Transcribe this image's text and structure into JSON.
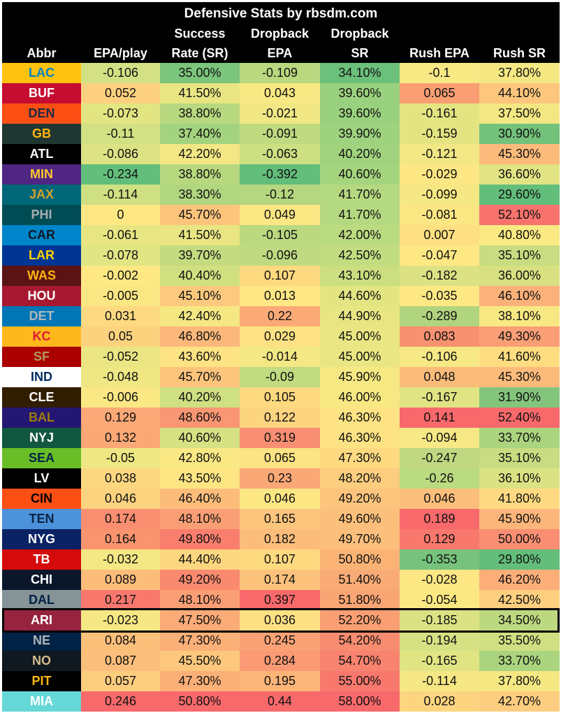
{
  "chart_data": {
    "type": "table",
    "title": "Defensive Stats by rbsdm.com",
    "columns": [
      {
        "key": "abbr",
        "lines": [
          "",
          "",
          "Abbr"
        ]
      },
      {
        "key": "epa",
        "lines": [
          "",
          "",
          "EPA/play"
        ]
      },
      {
        "key": "sr",
        "lines": [
          "",
          "Success",
          "Rate (SR)"
        ]
      },
      {
        "key": "db_epa",
        "lines": [
          "",
          "Dropback",
          "EPA"
        ]
      },
      {
        "key": "db_sr",
        "lines": [
          "",
          "Dropback",
          "SR"
        ]
      },
      {
        "key": "rush_epa",
        "lines": [
          "",
          "",
          "Rush EPA"
        ]
      },
      {
        "key": "rush_sr",
        "lines": [
          "",
          "",
          "Rush SR"
        ]
      }
    ],
    "highlighted_row": "ARI",
    "rows": [
      {
        "abbr": "LAC",
        "team_bg": "#FFC20E",
        "team_fg": "#0080C6",
        "values": [
          "-0.106",
          "35.00%",
          "-0.109",
          "34.10%",
          "-0.1",
          "37.80%"
        ],
        "colors": [
          "#d3e184",
          "#7cc57c",
          "#b9d87f",
          "#6bc07b",
          "#f9e985",
          "#f5e883"
        ]
      },
      {
        "abbr": "BUF",
        "team_bg": "#C60C30",
        "team_fg": "#ffffff",
        "values": [
          "0.052",
          "41.50%",
          "0.043",
          "39.60%",
          "0.065",
          "44.10%"
        ],
        "colors": [
          "#fdd17f",
          "#e9e582",
          "#f9e984",
          "#9ad17e",
          "#f99e72",
          "#fdc67d"
        ]
      },
      {
        "abbr": "DEN",
        "team_bg": "#FB4F14",
        "team_fg": "#1f2a44",
        "values": [
          "-0.073",
          "38.80%",
          "-0.021",
          "39.60%",
          "-0.161",
          "37.50%"
        ],
        "colors": [
          "#e3e583",
          "#b8d87f",
          "#f0e784",
          "#9ad17e",
          "#e4e483",
          "#f3e783"
        ]
      },
      {
        "abbr": "GB",
        "team_bg": "#203731",
        "team_fg": "#FFB612",
        "values": [
          "-0.11",
          "37.40%",
          "-0.091",
          "39.90%",
          "-0.159",
          "30.90%"
        ],
        "colors": [
          "#d1e183",
          "#a3d37e",
          "#bfda80",
          "#9ed27e",
          "#e4e483",
          "#73c27b"
        ]
      },
      {
        "abbr": "ATL",
        "team_bg": "#000000",
        "team_fg": "#ffffff",
        "values": [
          "-0.086",
          "42.20%",
          "-0.063",
          "40.20%",
          "-0.121",
          "45.30%"
        ],
        "colors": [
          "#dde384",
          "#f2e784",
          "#cddf81",
          "#a1d37e",
          "#f2e784",
          "#fcbb7b"
        ]
      },
      {
        "abbr": "MIN",
        "team_bg": "#4F2683",
        "team_fg": "#FFC62F",
        "values": [
          "-0.234",
          "38.80%",
          "-0.392",
          "40.60%",
          "-0.029",
          "36.60%"
        ],
        "colors": [
          "#63be7b",
          "#b8d87f",
          "#63be7b",
          "#a5d47e",
          "#fde784",
          "#e2e383"
        ]
      },
      {
        "abbr": "JAX",
        "team_bg": "#006778",
        "team_fg": "#D7A22A",
        "values": [
          "-0.114",
          "38.30%",
          "-0.12",
          "41.70%",
          "-0.099",
          "29.60%"
        ],
        "colors": [
          "#cfe083",
          "#b0d67f",
          "#b5d77f",
          "#b5d980",
          "#f5e884",
          "#63be7b"
        ]
      },
      {
        "abbr": "PHI",
        "team_bg": "#004C54",
        "team_fg": "#A5ACAF",
        "values": [
          "0",
          "45.70%",
          "0.049",
          "41.70%",
          "-0.081",
          "52.10%"
        ],
        "colors": [
          "#fee883",
          "#fdc47c",
          "#fbe784",
          "#b5d980",
          "#fae784",
          "#f8736d"
        ]
      },
      {
        "abbr": "CAR",
        "team_bg": "#0085CA",
        "team_fg": "#101820",
        "values": [
          "-0.061",
          "41.50%",
          "-0.105",
          "42.00%",
          "0.007",
          "40.80%"
        ],
        "colors": [
          "#e8e683",
          "#e9e582",
          "#bbd980",
          "#badb80",
          "#fedf82",
          "#fbe983"
        ]
      },
      {
        "abbr": "LAR",
        "team_bg": "#003594",
        "team_fg": "#FFD100",
        "values": [
          "-0.078",
          "39.70%",
          "-0.096",
          "42.50%",
          "-0.047",
          "35.10%"
        ],
        "colors": [
          "#e1e583",
          "#c5db80",
          "#bfda80",
          "#c2dd81",
          "#fde884",
          "#c9dc81"
        ]
      },
      {
        "abbr": "WAS",
        "team_bg": "#5A1414",
        "team_fg": "#FFB612",
        "values": [
          "-0.002",
          "40.40%",
          "0.107",
          "43.10%",
          "-0.182",
          "36.00%"
        ],
        "colors": [
          "#fde884",
          "#d0e081",
          "#fdd980",
          "#cbdf81",
          "#dce283",
          "#d8e082"
        ]
      },
      {
        "abbr": "HOU",
        "team_bg": "#A71930",
        "team_fg": "#ffffff",
        "values": [
          "-0.005",
          "45.10%",
          "0.013",
          "44.60%",
          "-0.035",
          "46.10%"
        ],
        "colors": [
          "#fae784",
          "#fdc97e",
          "#fee784",
          "#e3e583",
          "#fde884",
          "#fcb17a"
        ]
      },
      {
        "abbr": "DET",
        "team_bg": "#0076B6",
        "team_fg": "#B0B7BC",
        "values": [
          "0.031",
          "42.40%",
          "0.22",
          "44.90%",
          "-0.289",
          "38.10%"
        ],
        "colors": [
          "#fdda81",
          "#f5e883",
          "#fbaa77",
          "#e8e683",
          "#b1d47e",
          "#f8e883"
        ]
      },
      {
        "abbr": "KC",
        "team_bg": "#FFB81C",
        "team_fg": "#E31837",
        "values": [
          "0.05",
          "46.80%",
          "0.029",
          "45.00%",
          "0.083",
          "49.30%"
        ],
        "colors": [
          "#fdd27f",
          "#fcb87b",
          "#fee184",
          "#eae683",
          "#f8916f",
          "#fa9e75"
        ]
      },
      {
        "abbr": "SF",
        "team_bg": "#AA0000",
        "team_fg": "#B3995D",
        "values": [
          "-0.052",
          "43.60%",
          "-0.014",
          "45.00%",
          "-0.106",
          "41.60%"
        ],
        "colors": [
          "#ebe683",
          "#fde383",
          "#f3e884",
          "#eae683",
          "#f6e884",
          "#fedd81"
        ]
      },
      {
        "abbr": "IND",
        "team_bg": "#ffffff",
        "team_fg": "#002C5F",
        "values": [
          "-0.048",
          "45.70%",
          "-0.09",
          "45.90%",
          "0.048",
          "45.30%"
        ],
        "colors": [
          "#eee783",
          "#fdc47c",
          "#c1db80",
          "#f6e883",
          "#fbbc7a",
          "#fcbb7b"
        ]
      },
      {
        "abbr": "CLE",
        "team_bg": "#311D00",
        "team_fg": "#ffffff",
        "values": [
          "-0.006",
          "40.20%",
          "0.105",
          "46.00%",
          "-0.167",
          "31.90%"
        ],
        "colors": [
          "#fae884",
          "#cee081",
          "#fdd980",
          "#f8e883",
          "#e1e483",
          "#83c57c"
        ]
      },
      {
        "abbr": "BAL",
        "team_bg": "#241773",
        "team_fg": "#9E7C0C",
        "values": [
          "0.129",
          "48.60%",
          "0.122",
          "46.30%",
          "0.141",
          "52.40%"
        ],
        "colors": [
          "#fba977",
          "#f99673",
          "#fdd47f",
          "#fde384",
          "#f8696b",
          "#f8696b"
        ]
      },
      {
        "abbr": "NYJ",
        "team_bg": "#125740",
        "team_fg": "#ffffff",
        "values": [
          "0.132",
          "40.60%",
          "0.319",
          "46.30%",
          "-0.094",
          "33.70%"
        ],
        "colors": [
          "#fba876",
          "#d5e182",
          "#f98f72",
          "#fde384",
          "#f6e884",
          "#abd47e"
        ]
      },
      {
        "abbr": "SEA",
        "team_bg": "#69BE28",
        "team_fg": "#002244",
        "values": [
          "-0.05",
          "42.80%",
          "0.065",
          "47.30%",
          "-0.247",
          "35.10%"
        ],
        "colors": [
          "#eee783",
          "#f9e884",
          "#fce383",
          "#fed980",
          "#bfd881",
          "#c9dc81"
        ]
      },
      {
        "abbr": "LV",
        "team_bg": "#000000",
        "team_fg": "#ffffff",
        "values": [
          "0.038",
          "43.50%",
          "0.23",
          "48.20%",
          "-0.26",
          "36.10%"
        ],
        "colors": [
          "#fdd780",
          "#fde583",
          "#fba877",
          "#fdcd7f",
          "#badb80",
          "#dae283"
        ]
      },
      {
        "abbr": "CIN",
        "team_bg": "#FB4F14",
        "team_fg": "#000000",
        "values": [
          "0.046",
          "46.40%",
          "0.046",
          "49.20%",
          "0.046",
          "41.80%"
        ],
        "colors": [
          "#fdd37f",
          "#fcbd7b",
          "#fde784",
          "#fdc47d",
          "#fbbe7b",
          "#fed981"
        ]
      },
      {
        "abbr": "TEN",
        "team_bg": "#4B92DB",
        "team_fg": "#0C2340",
        "values": [
          "0.174",
          "48.10%",
          "0.165",
          "49.60%",
          "0.189",
          "45.90%"
        ],
        "colors": [
          "#f98e71",
          "#fa9f75",
          "#fcc57d",
          "#fcc07c",
          "#f8696b",
          "#fcb57a"
        ]
      },
      {
        "abbr": "NYG",
        "team_bg": "#0B2265",
        "team_fg": "#ffffff",
        "values": [
          "0.164",
          "49.80%",
          "0.182",
          "49.70%",
          "0.129",
          "50.00%"
        ],
        "colors": [
          "#f9946f",
          "#f97e6e",
          "#fcbd7a",
          "#fcbf7c",
          "#f9786d",
          "#f98e72"
        ]
      },
      {
        "abbr": "TB",
        "team_bg": "#D50A0A",
        "team_fg": "#ffffff",
        "values": [
          "-0.032",
          "44.40%",
          "0.107",
          "50.80%",
          "-0.353",
          "29.80%"
        ],
        "colors": [
          "#f3e884",
          "#fdd780",
          "#fdd980",
          "#fab375",
          "#77c27c",
          "#64be7b"
        ]
      },
      {
        "abbr": "CHI",
        "team_bg": "#0B162A",
        "team_fg": "#ffffff",
        "values": [
          "0.089",
          "49.20%",
          "0.174",
          "51.40%",
          "-0.028",
          "46.20%"
        ],
        "colors": [
          "#fcbd7b",
          "#f98a70",
          "#fcc27c",
          "#f9ab76",
          "#fde784",
          "#fcae79"
        ]
      },
      {
        "abbr": "DAL",
        "team_bg": "#869397",
        "team_fg": "#002244",
        "values": [
          "0.217",
          "48.10%",
          "0.397",
          "51.80%",
          "-0.054",
          "42.50%"
        ],
        "colors": [
          "#f8786e",
          "#fa9f75",
          "#f8696b",
          "#f9a574",
          "#fce883",
          "#fdcf7f"
        ]
      },
      {
        "abbr": "ARI",
        "team_bg": "#97233F",
        "team_fg": "#ffffff",
        "values": [
          "-0.023",
          "47.50%",
          "0.036",
          "52.20%",
          "-0.185",
          "34.50%"
        ],
        "colors": [
          "#f5e784",
          "#fbab77",
          "#fde084",
          "#f99f73",
          "#dbe283",
          "#bdd980"
        ]
      },
      {
        "abbr": "NE",
        "team_bg": "#002244",
        "team_fg": "#B0B7BC",
        "values": [
          "0.084",
          "47.30%",
          "0.245",
          "54.20%",
          "-0.194",
          "35.50%"
        ],
        "colors": [
          "#fcc07b",
          "#fbb078",
          "#faa276",
          "#f88c70",
          "#d6e183",
          "#cfdf81"
        ]
      },
      {
        "abbr": "NO",
        "team_bg": "#101820",
        "team_fg": "#D3BC8D",
        "values": [
          "0.087",
          "45.50%",
          "0.284",
          "54.70%",
          "-0.165",
          "33.70%"
        ],
        "colors": [
          "#fcbe7b",
          "#fdc87d",
          "#f99a74",
          "#f8836f",
          "#e1e483",
          "#abd47e"
        ]
      },
      {
        "abbr": "PIT",
        "team_bg": "#000000",
        "team_fg": "#FFB612",
        "values": [
          "0.057",
          "47.30%",
          "0.195",
          "55.00%",
          "-0.114",
          "37.80%"
        ],
        "colors": [
          "#fdcd7e",
          "#fbb078",
          "#fbb579",
          "#f8786d",
          "#f4e784",
          "#f5e883"
        ]
      },
      {
        "abbr": "MIA",
        "team_bg": "#66D8D8",
        "team_fg": "#ffffff",
        "values": [
          "0.246",
          "50.80%",
          "0.44",
          "58.00%",
          "0.028",
          "42.70%"
        ],
        "colors": [
          "#f8696b",
          "#f8696b",
          "#f8696b",
          "#f8696b",
          "#fdd580",
          "#fdcd7f"
        ]
      }
    ]
  }
}
